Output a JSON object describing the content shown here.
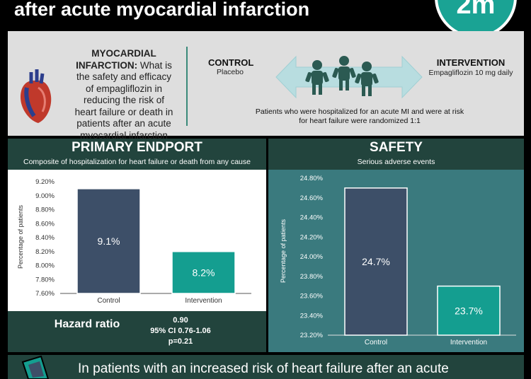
{
  "title": "after acute myocardial infarction",
  "logo_text": "2m",
  "question": {
    "heading": "MYOCARDIAL INFARCTION:",
    "text": "What is the safety and efficacy of empagliflozin in reducing the risk of heart failure or death in patients after an acute myocardial infarction (MI) ?"
  },
  "control": {
    "label": "CONTROL",
    "sub": "Placebo"
  },
  "intervention": {
    "label": "INTERVENTION",
    "sub": "Empagliflozin 10 mg daily"
  },
  "randomization": "Patients who were hospitalized for an acute MI and were at risk for heart failure were randomized 1:1",
  "primary": {
    "title": "PRIMARY ENDPORT",
    "subtitle": "Composite of hospitalization for heart failure or death from any cause"
  },
  "safety": {
    "title": "SAFETY",
    "subtitle": "Serious adverse events"
  },
  "hazard": {
    "label": "Hazard ratio",
    "value": "0.90",
    "ci": "95% CI 0.76-1.06",
    "p": "p=0.21"
  },
  "conclusion": "In patients with an increased risk of heart failure after an acute",
  "colors": {
    "dark": "#22443d",
    "control_bar": "#3d4f68",
    "intervention_bar": "#149e90",
    "teal_bg": "#3a7a7e"
  },
  "chart_data": [
    {
      "type": "bar",
      "categories": [
        "Control",
        "Intervention"
      ],
      "values": [
        9.1,
        8.2
      ],
      "data_labels": [
        "9.1%",
        "8.2%"
      ],
      "ylabel": "Percentage of patients",
      "ylim": [
        7.6,
        9.2
      ],
      "yticks": [
        "7.60%",
        "7.80%",
        "8.00%",
        "8.20%",
        "8.40%",
        "8.60%",
        "8.80%",
        "9.00%",
        "9.20%"
      ],
      "grid": false
    },
    {
      "type": "bar",
      "categories": [
        "Control",
        "Intervention"
      ],
      "values": [
        24.7,
        23.7
      ],
      "data_labels": [
        "24.7%",
        "23.7%"
      ],
      "ylabel": "Percentage of patients",
      "ylim": [
        23.2,
        24.8
      ],
      "yticks": [
        "23.20%",
        "23.40%",
        "23.60%",
        "23.80%",
        "24.00%",
        "24.20%",
        "24.40%",
        "24.60%",
        "24.80%"
      ],
      "grid": false
    }
  ]
}
